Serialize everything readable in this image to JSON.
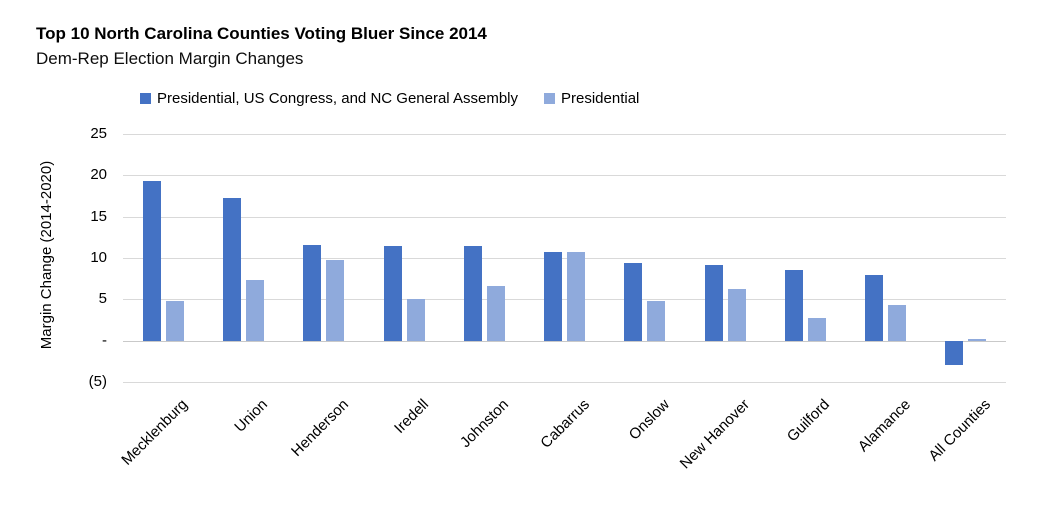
{
  "chart_data": {
    "type": "bar",
    "title": "Top 10 North Carolina Counties Voting Bluer Since 2014",
    "subtitle": "Dem-Rep Election Margin Changes",
    "ylabel": "Margin Change (2014-2020)",
    "xlabel": "",
    "categories": [
      "Mecklenburg",
      "Union",
      "Henderson",
      "Iredell",
      "Johnston",
      "Cabarrus",
      "Onslow",
      "New Hanover",
      "Guilford",
      "Alamance",
      "All Counties"
    ],
    "series": [
      {
        "name": "Presidential, US Congress, and NC General Assembly",
        "color": "#4472C4",
        "values": [
          19.3,
          17.3,
          11.6,
          11.5,
          11.4,
          10.7,
          9.4,
          9.1,
          8.5,
          7.9,
          -3.0
        ]
      },
      {
        "name": "Presidential",
        "color": "#8FAADC",
        "values": [
          4.8,
          7.3,
          9.8,
          5.0,
          6.6,
          10.7,
          4.8,
          6.3,
          2.8,
          4.3,
          0.2
        ]
      }
    ],
    "ylim": [
      -5,
      25
    ],
    "ytick_values": [
      25,
      20,
      15,
      10,
      5,
      0,
      -5
    ],
    "ytick_labels": [
      "25",
      "20",
      "15",
      "10",
      "5",
      "-",
      "(5)"
    ],
    "grid": true,
    "legend_position": "top",
    "colors": {
      "gridline": "#d9d9d9",
      "background": "#ffffff",
      "text": "#000000"
    }
  }
}
